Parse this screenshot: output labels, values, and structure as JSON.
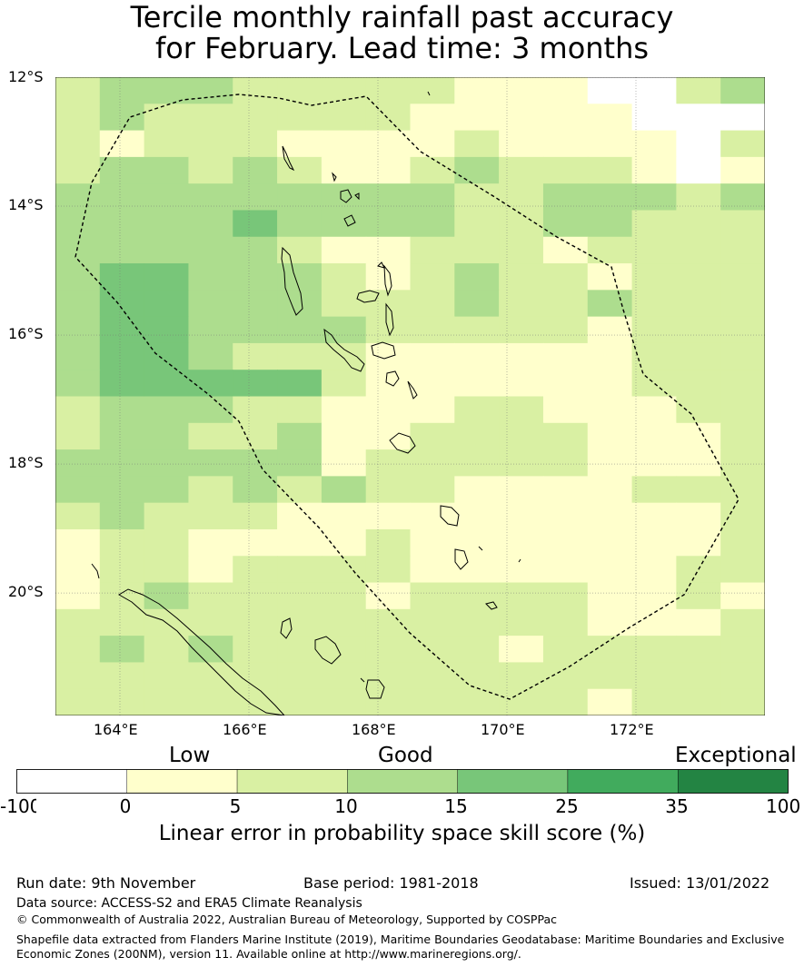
{
  "title": {
    "line1": "Tercile monthly rainfall past accuracy",
    "line2": "for February. Lead time: 3 months"
  },
  "map": {
    "lat_labels": [
      "12°S",
      "14°S",
      "16°S",
      "18°S",
      "20°S"
    ],
    "lon_labels": [
      "164°E",
      "166°E",
      "168°E",
      "170°E",
      "172°E"
    ],
    "lon_range": [
      163,
      174
    ],
    "lat_range": [
      -21.9,
      -12
    ],
    "grid_resolution_deg": 0.84,
    "skill_levels": [
      "white",
      "<5",
      "5-10",
      "10-15",
      "15-25",
      "25-35",
      ">35"
    ],
    "colors": [
      "#ffffff",
      "#ffffcc",
      "#d9f0a3",
      "#addd8e",
      "#78c679",
      "#41ab5d",
      "#238443"
    ],
    "cell_rows": [
      "2333222221110023",
      "2322222211111000",
      "2122211112111102",
      "2332321123222101",
      "3333333332233323",
      "3333433332233222",
      "3333321122212222",
      "3443332123221222",
      "3443332223223222",
      "3443333222221222",
      "3443222111111222",
      "3444442111111222",
      "2333221112211122",
      "2332231122221112",
      "3333331222221112",
      "3332323221111222",
      "2322211111111112",
      "1221111211111112",
      "1221222211111122",
      "1232222122221121",
      "2222222222221112",
      "2323222222122222",
      "2222222222222222",
      "2222222222221222"
    ]
  },
  "colorbar": {
    "categories": [
      "Low",
      "Good",
      "Exceptional"
    ],
    "ticks": [
      "-100",
      "0",
      "5",
      "10",
      "15",
      "25",
      "35",
      "100"
    ],
    "colors": [
      "#ffffff",
      "#ffffcc",
      "#d9f0a3",
      "#addd8e",
      "#78c679",
      "#41ab5d",
      "#238443"
    ],
    "label": "Linear error in probability space skill score (%)"
  },
  "footer": {
    "run_date": "Run date: 9th November",
    "base_period": "Base period: 1981-2018",
    "issued": "Issued: 13/01/2022",
    "data_source": "Data source: ACCESS-S2 and ERA5 Climate Reanalysis",
    "copyright": "© Commonwealth of Australia 2022, Australian Bureau of Meteorology, Supported by COSPPac",
    "shapefile_line1": "Shapefile data extracted from Flanders Marine Institute (2019), Maritime Boundaries Geodatabase: Maritime Boundaries and Exclusive",
    "shapefile_line2": "Economic Zones (200NM), version 11. Available online at http://www.marineregions.org/."
  }
}
